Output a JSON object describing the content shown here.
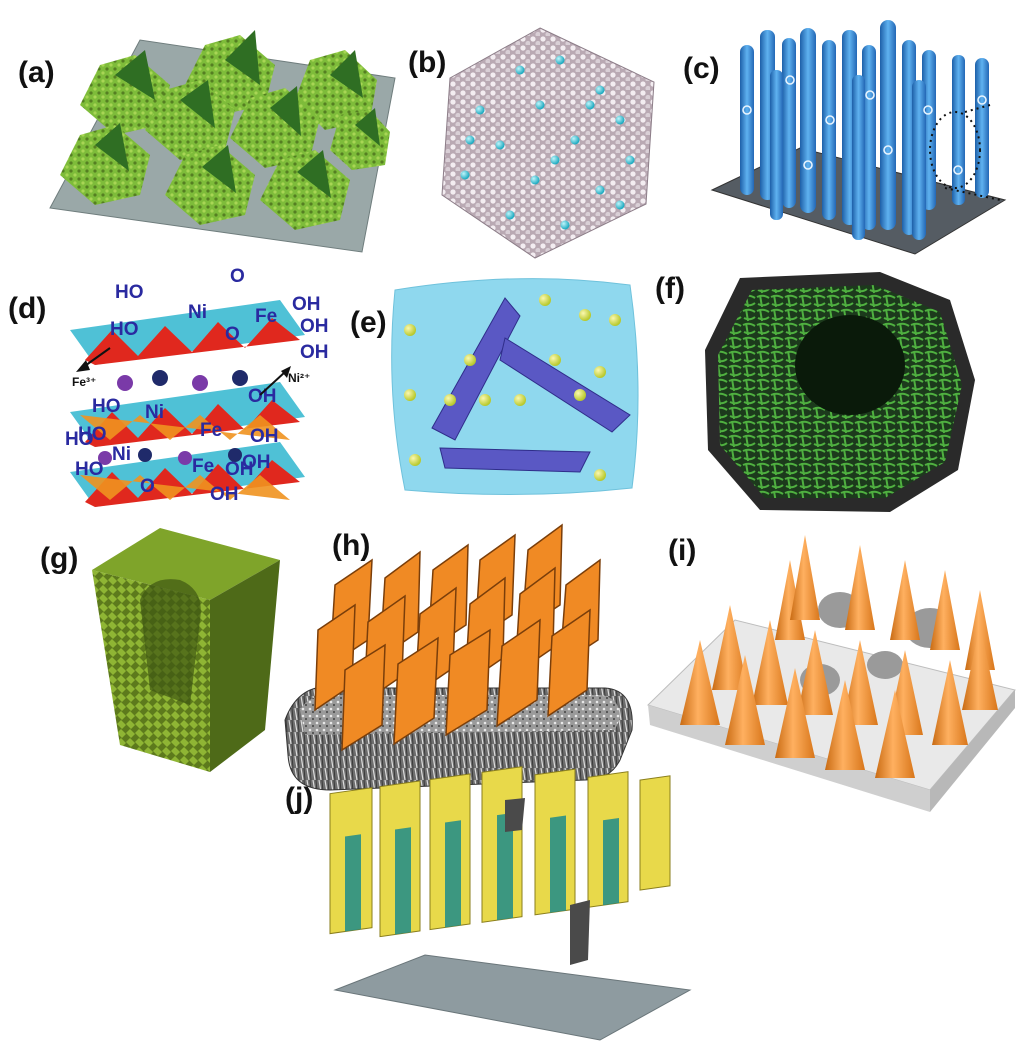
{
  "panels": [
    {
      "label": "(a)",
      "icon": "green-flower-clusters-on-substrate-icon"
    },
    {
      "label": "(b)",
      "icon": "hexagonal-atomic-lattice-icon"
    },
    {
      "label": "(c)",
      "icon": "blue-nanorod-array-icon"
    },
    {
      "label": "(d)",
      "icon": "layered-double-hydroxide-structure-icon"
    },
    {
      "label": "(e)",
      "icon": "nanosheets-in-blue-droplet-icon"
    },
    {
      "label": "(f)",
      "icon": "green-hollow-nanofiber-sphere-icon"
    },
    {
      "label": "(g)",
      "icon": "hollow-nanocube-icon"
    },
    {
      "label": "(h)",
      "icon": "orange-nanosheet-array-on-foam-icon"
    },
    {
      "label": "(i)",
      "icon": "orange-nanocone-array-icon"
    },
    {
      "label": "(j)",
      "icon": "yellow-teal-nanosheet-forest-icon"
    }
  ],
  "structure_d": {
    "HO": "HO",
    "OH": "OH",
    "O": "O",
    "Ni": "Ni",
    "Fe": "Fe",
    "ion_left": "Fe³⁺",
    "ion_right": "Ni²⁺"
  },
  "colors": {
    "green": "#4fa63a",
    "blue": "#2f7fd0",
    "cyan": "#41c1d3",
    "orange": "#f0922b",
    "yellow": "#e8d94a",
    "teal": "#1f8c8a",
    "slate": "#7a8a8e"
  }
}
